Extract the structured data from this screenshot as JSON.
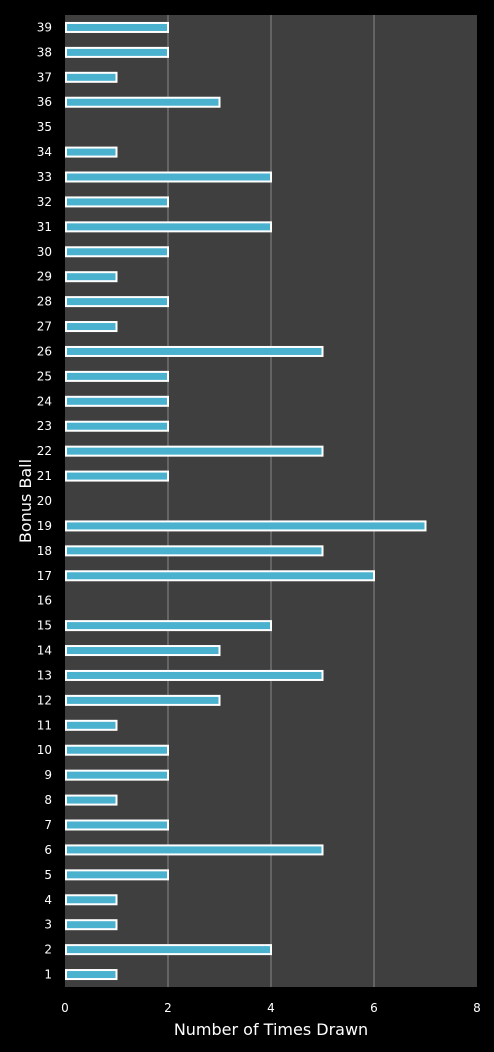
{
  "colors": {
    "background": "#000000",
    "plot_area": "#3f3f3f",
    "gridline": "#8a8a8a",
    "bar_fill": "#4ab1cf",
    "bar_border": "#ffffff",
    "text": "#ffffff"
  },
  "chart_data": {
    "type": "bar",
    "orientation": "horizontal",
    "title": "",
    "xlabel": "Number of Times Drawn",
    "ylabel": "Bonus Ball",
    "xlim": [
      0,
      8
    ],
    "x_ticks": [
      "0",
      "2",
      "4",
      "6",
      "8"
    ],
    "grid": "vertical gridlines at x ticks",
    "legend": "none",
    "categories": [
      "1",
      "2",
      "3",
      "4",
      "5",
      "6",
      "7",
      "8",
      "9",
      "10",
      "11",
      "12",
      "13",
      "14",
      "15",
      "16",
      "17",
      "18",
      "19",
      "20",
      "21",
      "22",
      "23",
      "24",
      "25",
      "26",
      "27",
      "28",
      "29",
      "30",
      "31",
      "32",
      "33",
      "34",
      "35",
      "36",
      "37",
      "38",
      "39"
    ],
    "values": [
      1,
      4,
      1,
      1,
      2,
      5,
      2,
      1,
      2,
      2,
      1,
      3,
      5,
      3,
      4,
      0,
      6,
      5,
      7,
      0,
      2,
      5,
      2,
      2,
      2,
      5,
      1,
      2,
      1,
      2,
      4,
      2,
      4,
      1,
      0,
      3,
      1,
      2,
      2
    ]
  }
}
